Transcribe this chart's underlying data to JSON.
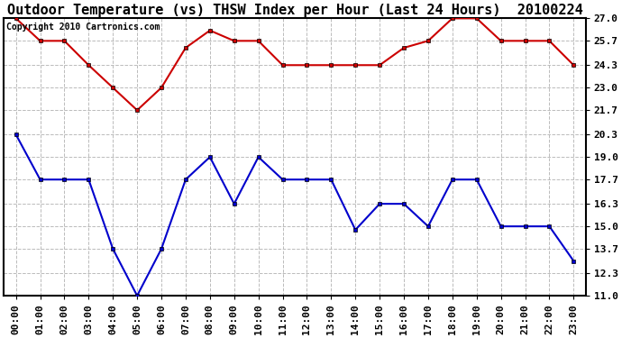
{
  "title": "Outdoor Temperature (vs) THSW Index per Hour (Last 24 Hours)  20100224",
  "copyright": "Copyright 2010 Cartronics.com",
  "hours": [
    "00:00",
    "01:00",
    "02:00",
    "03:00",
    "04:00",
    "05:00",
    "06:00",
    "07:00",
    "08:00",
    "09:00",
    "10:00",
    "11:00",
    "12:00",
    "13:00",
    "14:00",
    "15:00",
    "16:00",
    "17:00",
    "18:00",
    "19:00",
    "20:00",
    "21:00",
    "22:00",
    "23:00"
  ],
  "red_data": [
    27.0,
    25.7,
    25.7,
    24.3,
    23.0,
    21.7,
    23.0,
    25.3,
    26.3,
    25.7,
    25.7,
    24.3,
    24.3,
    24.3,
    24.3,
    24.3,
    25.3,
    25.7,
    27.0,
    27.0,
    25.7,
    25.7,
    25.7,
    24.3
  ],
  "blue_data": [
    20.3,
    17.7,
    17.7,
    17.7,
    13.7,
    11.0,
    13.7,
    17.7,
    19.0,
    16.3,
    19.0,
    17.7,
    17.7,
    17.7,
    14.8,
    16.3,
    16.3,
    15.0,
    17.7,
    17.7,
    15.0,
    15.0,
    15.0,
    13.0
  ],
  "red_color": "#cc0000",
  "blue_color": "#0000cc",
  "marker": "s",
  "marker_size": 3,
  "line_width": 1.5,
  "ylim": [
    11.0,
    27.0
  ],
  "yticks": [
    11.0,
    12.3,
    13.7,
    15.0,
    16.3,
    17.7,
    19.0,
    20.3,
    21.7,
    23.0,
    24.3,
    25.7,
    27.0
  ],
  "background_color": "#ffffff",
  "grid_color": "#bbbbbb",
  "title_fontsize": 11,
  "tick_fontsize": 8,
  "copyright_fontsize": 7
}
